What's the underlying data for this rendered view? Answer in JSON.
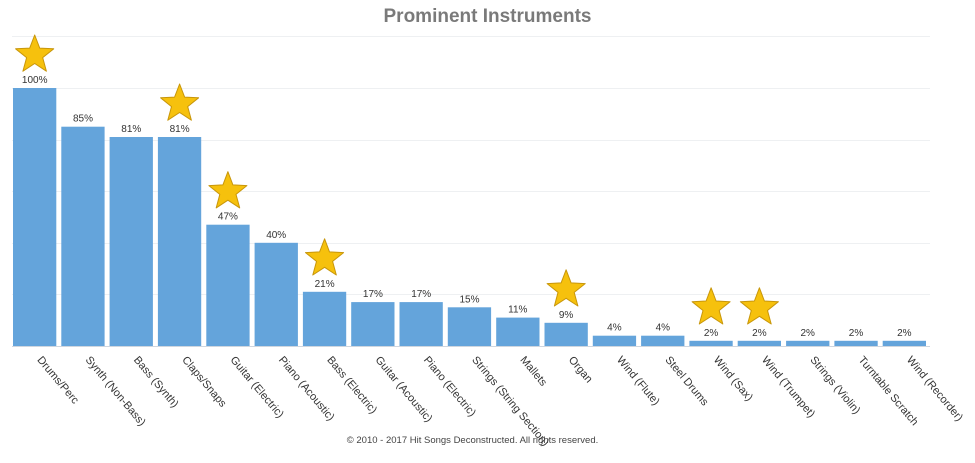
{
  "chart_data": {
    "type": "bar",
    "title": "Prominent Instruments",
    "categories": [
      "Drums/Perc",
      "Synth (Non-Bass)",
      "Bass (Synth)",
      "Claps/Snaps",
      "Guitar (Electric)",
      "Piano (Acoustic)",
      "Bass (Electric)",
      "Guitar (Acoustic)",
      "Piano (Electric)",
      "Strings (String Section)",
      "Mallets",
      "Organ",
      "Wind (Flute)",
      "Steel Drums",
      "Wind (Sax)",
      "Wind (Trumpet)",
      "Strings (Violin)",
      "Turntable Scratch",
      "Wind (Recorder)"
    ],
    "values": [
      100,
      85,
      81,
      81,
      47,
      40,
      21,
      17,
      17,
      15,
      11,
      9,
      4,
      4,
      2,
      2,
      2,
      2,
      2
    ],
    "data_labels": [
      "100%",
      "85%",
      "81%",
      "81%",
      "47%",
      "40%",
      "21%",
      "17%",
      "17%",
      "15%",
      "11%",
      "9%",
      "4%",
      "4%",
      "2%",
      "2%",
      "2%",
      "2%",
      "2%"
    ],
    "starred": [
      true,
      false,
      false,
      true,
      true,
      false,
      true,
      false,
      false,
      false,
      false,
      true,
      false,
      false,
      true,
      true,
      false,
      false,
      false
    ],
    "ylim": [
      0,
      100
    ],
    "grid": true,
    "legend": "none",
    "xlabel": "",
    "ylabel": "",
    "bar_color": "#64a4db",
    "star_color": "#f6c10d",
    "star_outline": "#c8960a"
  },
  "footer": "© 2010 - 2017 Hit Songs Deconstructed. All rights reserved."
}
